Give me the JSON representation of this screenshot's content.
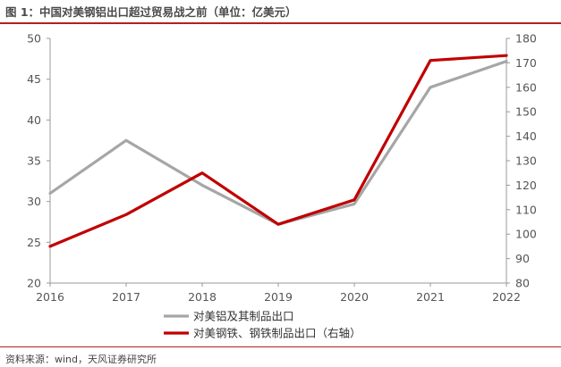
{
  "title": "图 1：中国对美钢铝出口超过贸易战之前（单位：亿美元）",
  "source": "资料来源：wind，天风证券研究所",
  "colors": {
    "accent": "#b41f24",
    "aluminum": "#a6a6a6",
    "steel": "#c00000"
  },
  "chart_data": {
    "type": "line",
    "categories": [
      "2016",
      "2017",
      "2018",
      "2019",
      "2020",
      "2021",
      "2022"
    ],
    "series": [
      {
        "name": "对美铝及其制品出口",
        "axis": "left",
        "values": [
          31,
          37.5,
          32,
          27.2,
          29.7,
          44,
          47.2
        ]
      },
      {
        "name": "对美钢铁、钢铁制品出口（右轴）",
        "axis": "right",
        "values": [
          95,
          108,
          125,
          104,
          114,
          171,
          173
        ]
      }
    ],
    "y_left": {
      "ylim": [
        20,
        50
      ],
      "ticks": [
        "20",
        "25",
        "30",
        "35",
        "40",
        "45",
        "50"
      ]
    },
    "y_right": {
      "ylim": [
        80,
        180
      ],
      "ticks": [
        "80",
        "90",
        "100",
        "110",
        "120",
        "130",
        "140",
        "150",
        "160",
        "170",
        "180"
      ]
    },
    "grid": false,
    "legend_position": "bottom"
  }
}
